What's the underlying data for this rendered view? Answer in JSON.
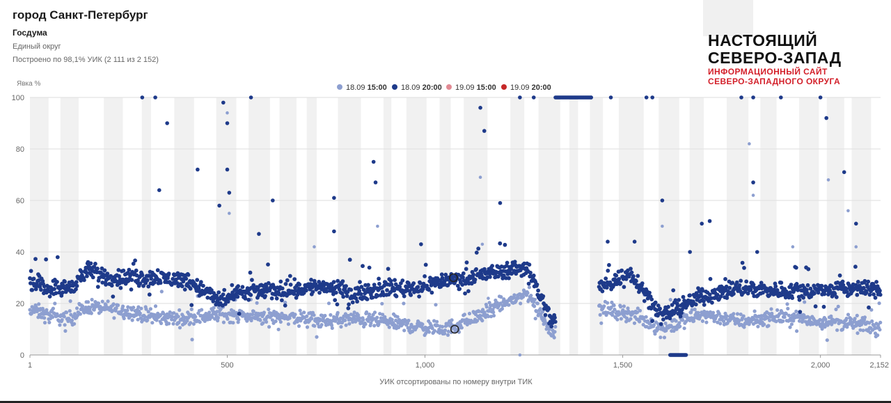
{
  "header": {
    "title": "город Санкт-Петербург",
    "subtitle": "Госдума",
    "district": "Единый округ",
    "basis": "Построено по 98,1% УИК (2 111 из 2 152)"
  },
  "brand": {
    "line1": "НАСТОЯЩИЙ",
    "line2": "СЕВЕРО-ЗАПАД",
    "sub1": "ИНФОРМАЦИОННЫЙ САЙТ",
    "sub2": "СЕВЕРО-ЗАПАДНОГО ОКРУГА",
    "accent_color": "#d3202a"
  },
  "chart_data": {
    "type": "scatter",
    "ylabel": "Явка %",
    "xlabel": "УИК отсортированы по номеру внутри ТИК",
    "xlim": [
      1,
      2152
    ],
    "ylim": [
      0,
      100
    ],
    "x_ticks": [
      {
        "value": 1,
        "label": "1"
      },
      {
        "value": 500,
        "label": "500"
      },
      {
        "value": 1000,
        "label": "1,000"
      },
      {
        "value": 1500,
        "label": "1,500"
      },
      {
        "value": 2000,
        "label": "2,000"
      },
      {
        "value": 2152,
        "label": "2,152"
      }
    ],
    "y_ticks": [
      0,
      20,
      40,
      60,
      80,
      100
    ],
    "grid": "horizontal",
    "background_bands": "alternating grey stripes per ТИК",
    "legend_position": "top-center",
    "series": [
      {
        "date": "18.09",
        "time": "15:00",
        "color": "#8d9fd0",
        "segments": [
          [
            1,
            18
          ],
          [
            50,
            15
          ],
          [
            100,
            14
          ],
          [
            150,
            19
          ],
          [
            250,
            17
          ],
          [
            300,
            15
          ],
          [
            400,
            14
          ],
          [
            480,
            16
          ],
          [
            560,
            15
          ],
          [
            650,
            15
          ],
          [
            740,
            13
          ],
          [
            820,
            14
          ],
          [
            900,
            13
          ],
          [
            980,
            11
          ],
          [
            1050,
            10
          ],
          [
            1120,
            14
          ],
          [
            1200,
            20
          ],
          [
            1260,
            24
          ],
          [
            1320,
            9
          ],
          [
            1440,
            18
          ],
          [
            1520,
            16
          ],
          [
            1600,
            10
          ],
          [
            1700,
            16
          ],
          [
            1800,
            13
          ],
          [
            1900,
            15
          ],
          [
            2000,
            13
          ],
          [
            2100,
            12
          ],
          [
            2152,
            10
          ]
        ],
        "outliers": [
          [
            330,
            13
          ],
          [
            500,
            94
          ],
          [
            505,
            55
          ],
          [
            720,
            42
          ],
          [
            880,
            50
          ],
          [
            1140,
            69
          ],
          [
            1145,
            43
          ],
          [
            1160,
            22
          ],
          [
            1240,
            0
          ],
          [
            1600,
            50
          ],
          [
            1820,
            82
          ],
          [
            1830,
            62
          ],
          [
            1930,
            42
          ],
          [
            2020,
            68
          ],
          [
            2070,
            56
          ],
          [
            2090,
            42
          ]
        ]
      },
      {
        "date": "18.09",
        "time": "20:00",
        "color": "#1e3a8a",
        "segments": [
          [
            1,
            29
          ],
          [
            50,
            26
          ],
          [
            100,
            26
          ],
          [
            150,
            33
          ],
          [
            200,
            30
          ],
          [
            300,
            30
          ],
          [
            400,
            29
          ],
          [
            480,
            21
          ],
          [
            560,
            25
          ],
          [
            650,
            25
          ],
          [
            740,
            27
          ],
          [
            820,
            24
          ],
          [
            900,
            26
          ],
          [
            980,
            26
          ],
          [
            1050,
            29
          ],
          [
            1120,
            30
          ],
          [
            1200,
            33
          ],
          [
            1260,
            34
          ],
          [
            1320,
            13
          ],
          [
            1440,
            26
          ],
          [
            1520,
            32
          ],
          [
            1600,
            15
          ],
          [
            1700,
            23
          ],
          [
            1800,
            26
          ],
          [
            1900,
            25
          ],
          [
            2000,
            25
          ],
          [
            2100,
            26
          ],
          [
            2152,
            25
          ]
        ],
        "outliers": [
          [
            285,
            100
          ],
          [
            318,
            100
          ],
          [
            348,
            90
          ],
          [
            328,
            64
          ],
          [
            425,
            72
          ],
          [
            480,
            58
          ],
          [
            490,
            98
          ],
          [
            500,
            90
          ],
          [
            500,
            72
          ],
          [
            505,
            63
          ],
          [
            560,
            100
          ],
          [
            615,
            60
          ],
          [
            580,
            47
          ],
          [
            770,
            61
          ],
          [
            770,
            48
          ],
          [
            870,
            75
          ],
          [
            875,
            67
          ],
          [
            990,
            43
          ],
          [
            1140,
            96
          ],
          [
            1150,
            87
          ],
          [
            1190,
            59
          ],
          [
            1240,
            100
          ],
          [
            1275,
            100
          ],
          [
            1420,
            100
          ],
          [
            1470,
            100
          ],
          [
            1560,
            100
          ],
          [
            1575,
            100
          ],
          [
            1600,
            60
          ],
          [
            1670,
            40
          ],
          [
            1700,
            51
          ],
          [
            1720,
            52
          ],
          [
            1800,
            100
          ],
          [
            1830,
            100
          ],
          [
            1830,
            67
          ],
          [
            1840,
            40
          ],
          [
            1900,
            100
          ],
          [
            2000,
            100
          ],
          [
            2015,
            92
          ],
          [
            2060,
            71
          ],
          [
            2090,
            51
          ],
          [
            1530,
            44
          ],
          [
            1462,
            44
          ]
        ],
        "flat_runs": [
          [
            1330,
            1420,
            100
          ],
          [
            1620,
            1660,
            0
          ]
        ]
      },
      {
        "date": "19.09",
        "time": "15:00",
        "color": "#e28a94"
      },
      {
        "date": "19.09",
        "time": "20:00",
        "color": "#c62828"
      }
    ],
    "highlighted_points": [
      [
        1072,
        30
      ],
      [
        1075,
        10
      ]
    ]
  }
}
